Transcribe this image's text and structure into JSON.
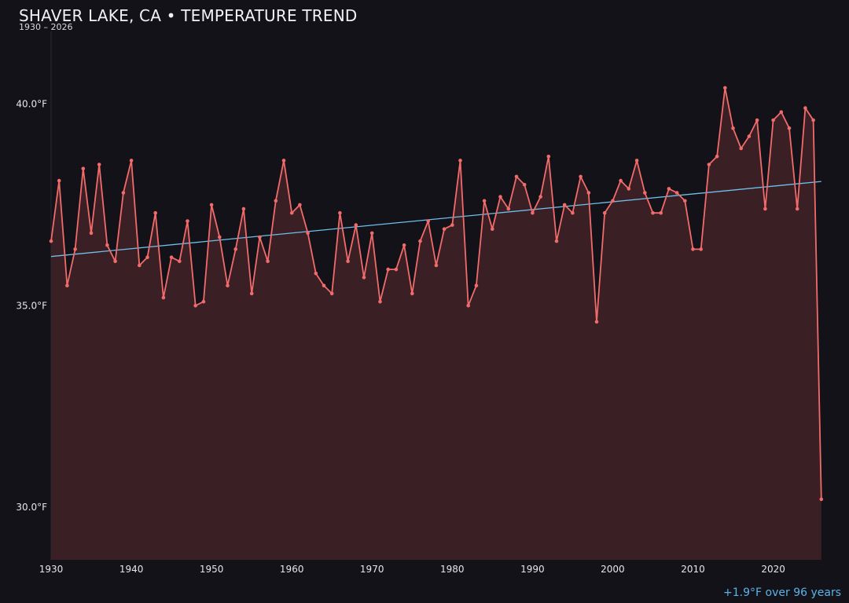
{
  "header": {
    "title": "SHAVER LAKE, CA • TEMPERATURE TREND",
    "subtitle": "1930 – 2026"
  },
  "footer": {
    "trend_note": "+1.9°F over 96 years"
  },
  "colors": {
    "background": "#131218",
    "line": "#f26b6b",
    "fill": "#3a1f25",
    "trend": "#6fbfec",
    "text": "#e8e8ee"
  },
  "chart_data": {
    "type": "line",
    "title": "SHAVER LAKE, CA • TEMPERATURE TREND",
    "subtitle": "1930 – 2026",
    "xlabel": "",
    "ylabel": "",
    "xlim": [
      1930,
      2027
    ],
    "ylim": [
      28.7,
      41.8
    ],
    "x_ticks": [
      1930,
      1940,
      1950,
      1960,
      1970,
      1980,
      1990,
      2000,
      2010,
      2020
    ],
    "x_tick_labels": [
      "1930",
      "1940",
      "1950",
      "1960",
      "1970",
      "1980",
      "1990",
      "2000",
      "2010",
      "2020"
    ],
    "y_ticks": [
      30,
      35,
      40
    ],
    "y_tick_labels": [
      "30.0°F",
      "35.0°F",
      "40.0°F"
    ],
    "grid": false,
    "legend": "none",
    "area_fill": true,
    "series": [
      {
        "x": [
          1930,
          1931,
          1932,
          1933,
          1934,
          1935,
          1936,
          1937,
          1938,
          1939,
          1940,
          1941,
          1942,
          1943,
          1944,
          1945,
          1946,
          1947,
          1948,
          1949,
          1950,
          1951,
          1952,
          1953,
          1954,
          1955,
          1956,
          1957,
          1958,
          1959,
          1960,
          1961,
          1962,
          1963,
          1964,
          1965,
          1966,
          1967,
          1968,
          1969,
          1970,
          1971,
          1972,
          1973,
          1974,
          1975,
          1976,
          1977,
          1978,
          1979,
          1980,
          1981,
          1982,
          1983,
          1984,
          1985,
          1986,
          1987,
          1988,
          1989,
          1990,
          1991,
          1992,
          1993,
          1994,
          1995,
          1996,
          1997,
          1998,
          1999,
          2000,
          2001,
          2002,
          2003,
          2004,
          2005,
          2006,
          2007,
          2008,
          2009,
          2010,
          2011,
          2012,
          2013,
          2014,
          2015,
          2016,
          2017,
          2018,
          2019,
          2020,
          2021,
          2022,
          2023,
          2024,
          2025,
          2026
        ],
        "values": [
          36.6,
          38.1,
          35.5,
          36.4,
          38.4,
          36.8,
          38.5,
          36.5,
          36.1,
          37.8,
          38.6,
          36.0,
          36.2,
          37.3,
          35.2,
          36.2,
          36.1,
          37.1,
          35.0,
          35.1,
          37.5,
          36.7,
          35.5,
          36.4,
          37.4,
          35.3,
          36.7,
          36.1,
          37.6,
          38.6,
          37.3,
          37.5,
          36.8,
          35.8,
          35.5,
          35.3,
          37.3,
          36.1,
          37.0,
          35.7,
          36.8,
          35.1,
          35.9,
          35.9,
          36.5,
          35.3,
          36.6,
          37.1,
          36.0,
          36.9,
          37.0,
          38.6,
          35.0,
          35.5,
          37.6,
          36.9,
          37.7,
          37.4,
          38.2,
          38.0,
          37.3,
          37.7,
          38.7,
          36.6,
          37.5,
          37.3,
          38.2,
          37.8,
          34.6,
          37.3,
          37.6,
          38.1,
          37.9,
          38.6,
          37.8,
          37.3,
          37.3,
          37.9,
          37.8,
          37.6,
          36.4,
          36.4,
          38.5,
          38.7,
          40.4,
          39.4,
          38.9,
          39.2,
          39.6,
          37.4,
          39.6,
          39.8,
          39.4,
          37.4,
          39.9,
          39.6,
          30.2
        ]
      },
      {
        "x": [
          1930,
          2026
        ],
        "values": [
          36.22,
          38.08
        ]
      }
    ]
  }
}
